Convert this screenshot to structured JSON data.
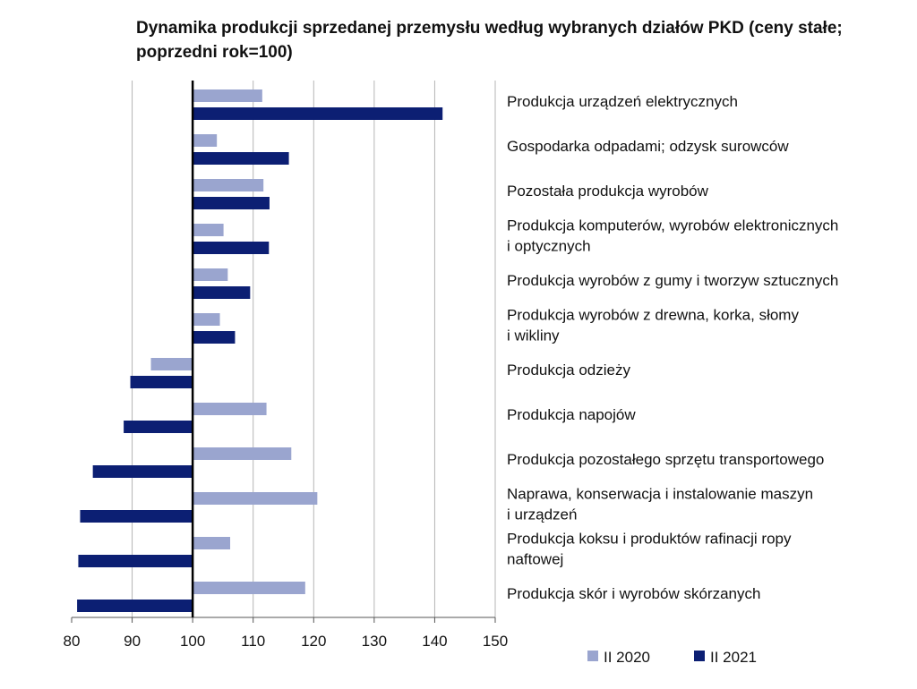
{
  "chart_data": {
    "type": "bar",
    "orientation": "horizontal",
    "title": "Dynamika produkcji sprzedanej przemysłu według wybranych działów PKD (ceny stałe; poprzedni rok=100)",
    "xlabel": "",
    "ylabel": "",
    "xlim": [
      80,
      150
    ],
    "xticks": [
      80,
      90,
      100,
      110,
      120,
      130,
      140,
      150
    ],
    "baseline": 100,
    "grid": "vertical",
    "legend_position": "bottom",
    "categories": [
      "Produkcja urządzeń elektrycznych",
      "Gospodarka odpadami; odzysk surowców",
      "Pozostała produkcja wyrobów",
      "Produkcja komputerów, wyrobów elektronicznych i optycznych",
      "Produkcja wyrobów z gumy i tworzyw sztucznych",
      "Produkcja wyrobów z drewna, korka, słomy i wikliny",
      "Produkcja odzieży",
      "Produkcja napojów",
      "Produkcja pozostałego sprzętu transportowego",
      "Naprawa, konserwacja i instalowanie maszyn i urządzeń",
      "Produkcja koksu i produktów rafinacji ropy naftowej",
      "Produkcja skór i wyrobów skórzanych"
    ],
    "category_lines": [
      [
        "Produkcja urządzeń elektrycznych"
      ],
      [
        "Gospodarka odpadami; odzysk surowców"
      ],
      [
        "Pozostała produkcja wyrobów"
      ],
      [
        "Produkcja komputerów, wyrobów elektronicznych",
        "i optycznych"
      ],
      [
        "Produkcja wyrobów z gumy i tworzyw sztucznych"
      ],
      [
        "Produkcja wyrobów z drewna, korka, słomy",
        "i wikliny"
      ],
      [
        "Produkcja odzieży"
      ],
      [
        "Produkcja napojów"
      ],
      [
        "Produkcja pozostałego sprzętu transportowego"
      ],
      [
        "Naprawa, konserwacja i instalowanie maszyn",
        "i urządzeń"
      ],
      [
        "Produkcja koksu i produktów rafinacji ropy",
        "naftowej"
      ],
      [
        "Produkcja skór i wyrobów skórzanych"
      ]
    ],
    "series": [
      {
        "name": "II 2020",
        "color": "#9aa5cf",
        "values": [
          111.5,
          104.0,
          111.7,
          105.1,
          105.8,
          104.5,
          93.1,
          112.2,
          116.3,
          120.6,
          106.2,
          118.6
        ]
      },
      {
        "name": "II 2021",
        "color": "#0c1f73",
        "values": [
          141.3,
          115.9,
          112.7,
          112.6,
          109.5,
          107.0,
          89.7,
          88.6,
          83.5,
          81.4,
          81.1,
          80.9
        ]
      }
    ]
  }
}
